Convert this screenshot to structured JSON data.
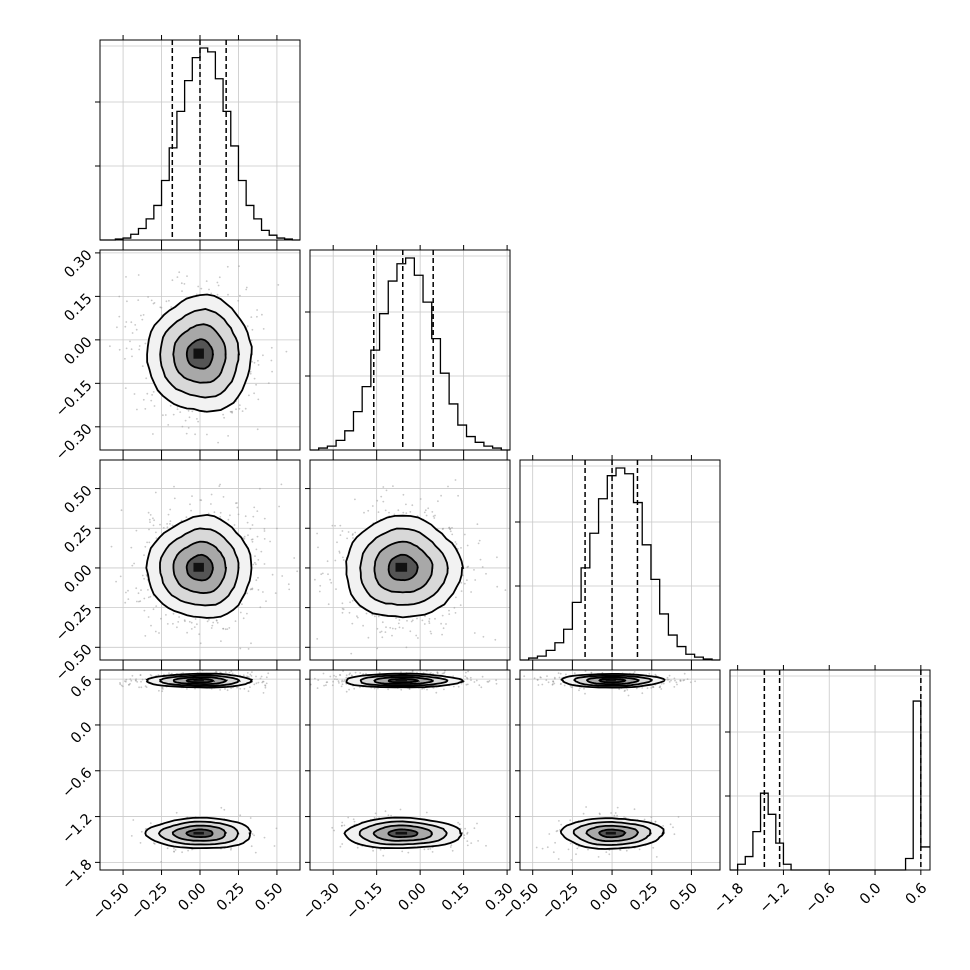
{
  "chart_data": {
    "type": "corner",
    "title": "",
    "parameters": 4,
    "grid": true,
    "axes": [
      {
        "index": 0,
        "range": [
          -0.65,
          0.65
        ],
        "ticks": [
          -0.5,
          -0.25,
          0.0,
          0.25,
          0.5
        ],
        "tick_labels": [
          "−0.50",
          "−0.25",
          "0.00",
          "0.25",
          "0.50"
        ],
        "quantiles": [
          -0.18,
          0.0,
          0.17
        ]
      },
      {
        "index": 1,
        "range": [
          -0.38,
          0.31
        ],
        "ticks": [
          -0.3,
          -0.15,
          0.0,
          0.15,
          0.3
        ],
        "tick_labels": [
          "−0.30",
          "−0.15",
          "0.00",
          "0.15",
          "0.30"
        ],
        "quantiles": [
          -0.16,
          -0.06,
          0.045
        ]
      },
      {
        "index": 2,
        "range": [
          -0.58,
          0.68
        ],
        "ticks": [
          -0.5,
          -0.25,
          0.0,
          0.25,
          0.5
        ],
        "tick_labels": [
          "−0.50",
          "−0.25",
          "0.00",
          "0.25",
          "0.50"
        ],
        "quantiles": [
          -0.17,
          0.0,
          0.16
        ]
      },
      {
        "index": 3,
        "range": [
          -1.9,
          0.72
        ],
        "ticks": [
          -1.8,
          -1.2,
          -0.6,
          0.0,
          0.6
        ],
        "tick_labels": [
          "−1.8",
          "−1.2",
          "−0.6",
          "0.0",
          "0.6"
        ],
        "quantiles": [
          -1.45,
          -1.25,
          0.6
        ]
      }
    ],
    "histograms": [
      {
        "axis": 0,
        "bin_edges": [
          -0.65,
          -0.6,
          -0.55,
          -0.5,
          -0.45,
          -0.4,
          -0.35,
          -0.3,
          -0.25,
          -0.2,
          -0.15,
          -0.1,
          -0.05,
          0.0,
          0.05,
          0.1,
          0.15,
          0.2,
          0.25,
          0.3,
          0.35,
          0.4,
          0.45,
          0.5,
          0.55,
          0.6,
          0.65
        ],
        "heights": [
          0.0,
          0.0,
          0.005,
          0.01,
          0.03,
          0.06,
          0.11,
          0.18,
          0.31,
          0.48,
          0.67,
          0.83,
          0.95,
          1.0,
          0.98,
          0.84,
          0.67,
          0.49,
          0.31,
          0.18,
          0.11,
          0.05,
          0.025,
          0.01,
          0.005,
          0.0
        ]
      },
      {
        "axis": 1,
        "bin_edges": [
          -0.38,
          -0.35,
          -0.32,
          -0.29,
          -0.26,
          -0.23,
          -0.2,
          -0.17,
          -0.14,
          -0.11,
          -0.08,
          -0.05,
          -0.02,
          0.01,
          0.04,
          0.07,
          0.1,
          0.13,
          0.16,
          0.19,
          0.22,
          0.25,
          0.28,
          0.31
        ],
        "heights": [
          0.0,
          0.01,
          0.02,
          0.05,
          0.1,
          0.2,
          0.33,
          0.52,
          0.71,
          0.88,
          0.97,
          1.0,
          0.91,
          0.77,
          0.58,
          0.4,
          0.24,
          0.13,
          0.07,
          0.04,
          0.02,
          0.01,
          0.0
        ]
      },
      {
        "axis": 2,
        "bin_edges": [
          -0.58,
          -0.525,
          -0.47,
          -0.415,
          -0.36,
          -0.305,
          -0.25,
          -0.195,
          -0.14,
          -0.085,
          -0.03,
          0.025,
          0.08,
          0.135,
          0.19,
          0.245,
          0.3,
          0.355,
          0.41,
          0.465,
          0.52,
          0.575,
          0.63,
          0.68
        ],
        "heights": [
          0.0,
          0.01,
          0.02,
          0.05,
          0.09,
          0.16,
          0.3,
          0.48,
          0.66,
          0.84,
          0.96,
          1.0,
          0.97,
          0.82,
          0.6,
          0.42,
          0.24,
          0.13,
          0.07,
          0.03,
          0.015,
          0.005,
          0.0
        ]
      },
      {
        "axis": 3,
        "bin_edges": [
          -1.9,
          -1.8,
          -1.7,
          -1.6,
          -1.5,
          -1.4,
          -1.3,
          -1.2,
          -1.1,
          -1.0,
          -0.9,
          -0.8,
          -0.7,
          -0.6,
          -0.5,
          -0.4,
          -0.3,
          -0.2,
          -0.1,
          0.0,
          0.1,
          0.2,
          0.3,
          0.4,
          0.5,
          0.6,
          0.72
        ],
        "heights": [
          0.0,
          0.03,
          0.07,
          0.2,
          0.4,
          0.29,
          0.14,
          0.03,
          0.0,
          0.0,
          0.0,
          0.0,
          0.0,
          0.0,
          0.0,
          0.0,
          0.0,
          0.0,
          0.0,
          0.0,
          0.0,
          0.0,
          0.0,
          0.06,
          0.88,
          0.12
        ]
      }
    ],
    "scatter_panels": [
      {
        "row": 1,
        "col": 0,
        "x_axis": 0,
        "y_axis": 1,
        "modes": [
          {
            "x": 0.0,
            "y": -0.05,
            "sx": 0.17,
            "sy": 0.1,
            "weight": 1.0
          }
        ]
      },
      {
        "row": 2,
        "col": 0,
        "x_axis": 0,
        "y_axis": 2,
        "modes": [
          {
            "x": 0.0,
            "y": 0.0,
            "sx": 0.17,
            "sy": 0.16,
            "weight": 1.0
          }
        ]
      },
      {
        "row": 2,
        "col": 1,
        "x_axis": 1,
        "y_axis": 2,
        "modes": [
          {
            "x": -0.06,
            "y": 0.0,
            "sx": 0.1,
            "sy": 0.16,
            "weight": 1.0
          }
        ]
      },
      {
        "row": 3,
        "col": 0,
        "x_axis": 0,
        "y_axis": 3,
        "modes": [
          {
            "x": 0.0,
            "y": 0.58,
            "sx": 0.17,
            "sy": 0.045,
            "weight": 0.7
          },
          {
            "x": 0.0,
            "y": -1.42,
            "sx": 0.17,
            "sy": 0.1,
            "weight": 0.3
          }
        ]
      },
      {
        "row": 3,
        "col": 1,
        "x_axis": 1,
        "y_axis": 3,
        "modes": [
          {
            "x": -0.06,
            "y": 0.58,
            "sx": 0.1,
            "sy": 0.045,
            "weight": 0.7
          },
          {
            "x": -0.06,
            "y": -1.42,
            "sx": 0.1,
            "sy": 0.1,
            "weight": 0.3
          }
        ]
      },
      {
        "row": 3,
        "col": 2,
        "x_axis": 2,
        "y_axis": 3,
        "modes": [
          {
            "x": 0.0,
            "y": 0.58,
            "sx": 0.16,
            "sy": 0.045,
            "weight": 0.7
          },
          {
            "x": 0.0,
            "y": -1.42,
            "sx": 0.16,
            "sy": 0.1,
            "weight": 0.3
          }
        ]
      }
    ],
    "contour_levels_sigma": [
      0.5,
      1.0,
      1.5,
      2.0
    ]
  }
}
